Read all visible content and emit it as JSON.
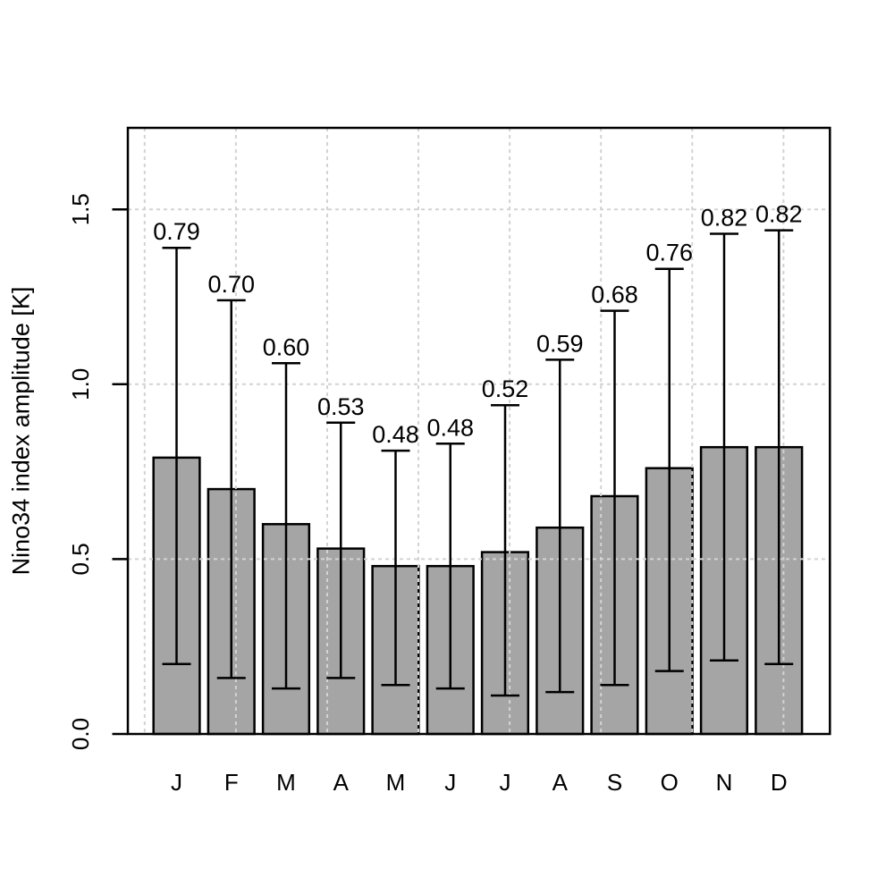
{
  "chart_data": {
    "type": "bar",
    "title": "",
    "xlabel": "",
    "ylabel": "Nino34 index amplitude [K]",
    "categories": [
      "J",
      "F",
      "M",
      "A",
      "M",
      "J",
      "J",
      "A",
      "S",
      "O",
      "N",
      "D"
    ],
    "values": [
      0.79,
      0.7,
      0.6,
      0.53,
      0.48,
      0.48,
      0.52,
      0.59,
      0.68,
      0.76,
      0.82,
      0.82
    ],
    "value_labels": [
      "0.79",
      "0.70",
      "0.60",
      "0.53",
      "0.48",
      "0.48",
      "0.52",
      "0.59",
      "0.68",
      "0.76",
      "0.82",
      "0.82"
    ],
    "error_bars": {
      "lower": [
        0.2,
        0.16,
        0.13,
        0.16,
        0.14,
        0.13,
        0.11,
        0.12,
        0.14,
        0.18,
        0.21,
        0.2
      ],
      "upper": [
        1.39,
        1.24,
        1.06,
        0.89,
        0.81,
        0.83,
        0.94,
        1.07,
        1.21,
        1.33,
        1.43,
        1.44
      ]
    },
    "y_axis": {
      "ticks": [
        0.0,
        0.5,
        1.0,
        1.5
      ],
      "tick_labels": [
        "0.0",
        "0.5",
        "1.0",
        "1.5"
      ],
      "ylim": [
        0,
        1.733
      ]
    },
    "x_axis": {
      "tick_marks": false
    },
    "grid": {
      "horizontal_at": [
        0.5,
        1.0,
        1.5
      ],
      "vertical_count": 8,
      "style": "dashed",
      "drawn_on_top_of_bars": true
    },
    "legend": "none",
    "colors": {
      "background": "#FFFFFF",
      "bar_fill": "#A5A5A5",
      "bar_border": "#000000",
      "error_bar": "#000000",
      "grid": "#D3D3D3",
      "axis": "#000000",
      "text": "#000000"
    }
  }
}
